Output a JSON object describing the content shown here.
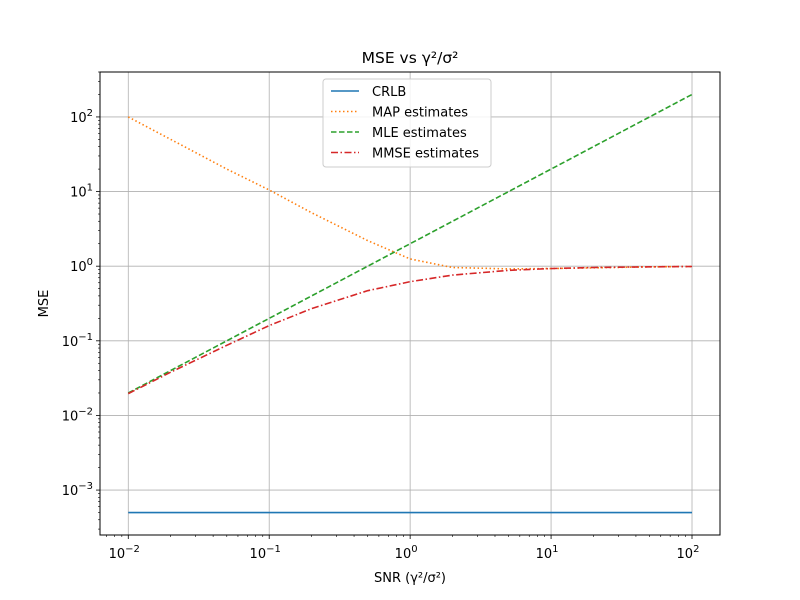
{
  "chart_data": {
    "type": "line",
    "title": "MSE vs γ²/σ²",
    "xlabel": "SNR (γ²/σ²)",
    "ylabel": "MSE",
    "xscale": "log",
    "yscale": "log",
    "xlim": [
      0.0063,
      158
    ],
    "ylim": [
      0.00025,
      400
    ],
    "grid": true,
    "legend_position": "top-center",
    "x_ticks": [
      {
        "value": 0.01,
        "base": "10",
        "exp": "−2"
      },
      {
        "value": 0.1,
        "base": "10",
        "exp": "−1"
      },
      {
        "value": 1,
        "base": "10",
        "exp": "0"
      },
      {
        "value": 10,
        "base": "10",
        "exp": "1"
      },
      {
        "value": 100,
        "base": "10",
        "exp": "2"
      }
    ],
    "y_ticks": [
      {
        "value": 0.001,
        "base": "10",
        "exp": "−3"
      },
      {
        "value": 0.01,
        "base": "10",
        "exp": "−2"
      },
      {
        "value": 0.1,
        "base": "10",
        "exp": "−1"
      },
      {
        "value": 1,
        "base": "10",
        "exp": "0"
      },
      {
        "value": 10,
        "base": "10",
        "exp": "1"
      },
      {
        "value": 100,
        "base": "10",
        "exp": "2"
      }
    ],
    "x": [
      0.01,
      0.02,
      0.05,
      0.1,
      0.2,
      0.5,
      1,
      2,
      5,
      10,
      20,
      50,
      100
    ],
    "series": [
      {
        "name": "CRLB",
        "color": "#1f77b4",
        "dash": "solid",
        "values": [
          0.0005,
          0.0005,
          0.0005,
          0.0005,
          0.0005,
          0.0005,
          0.0005,
          0.0005,
          0.0005,
          0.0005,
          0.0005,
          0.0005,
          0.0005
        ]
      },
      {
        "name": "MAP estimates",
        "color": "#ff7f0e",
        "dash": "dotted",
        "values": [
          100,
          50,
          20,
          10.5,
          5.2,
          2.2,
          1.25,
          0.96,
          0.92,
          0.93,
          0.95,
          0.98,
          0.99
        ]
      },
      {
        "name": "MLE estimates",
        "color": "#2ca02c",
        "dash": "dashed",
        "values": [
          0.02,
          0.04,
          0.1,
          0.2,
          0.4,
          1,
          2,
          4,
          10,
          20,
          40,
          100,
          200
        ]
      },
      {
        "name": "MMSE estimates",
        "color": "#d62728",
        "dash": "dashdot",
        "values": [
          0.0196,
          0.038,
          0.087,
          0.16,
          0.27,
          0.47,
          0.62,
          0.76,
          0.88,
          0.93,
          0.96,
          0.98,
          0.99
        ]
      }
    ]
  }
}
